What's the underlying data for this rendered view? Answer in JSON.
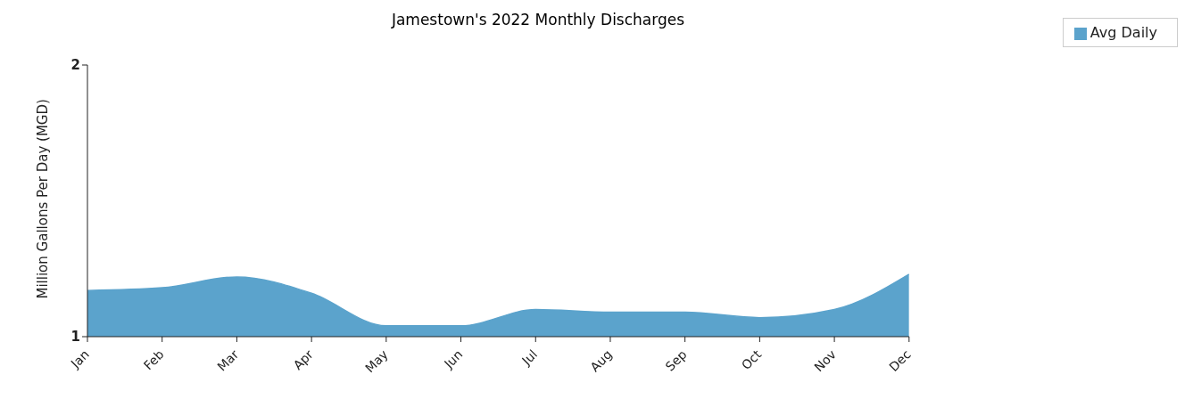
{
  "chart_data": {
    "type": "area",
    "title": "Jamestown's 2022 Monthly Discharges",
    "ylabel": "Million Gallons Per Day (MGD)",
    "categories": [
      "Jan",
      "Feb",
      "Mar",
      "Apr",
      "May",
      "Jun",
      "Jul",
      "Aug",
      "Sep",
      "Oct",
      "Nov",
      "Dec"
    ],
    "series": [
      {
        "name": "Avg Daily",
        "color": "#5ba3cc",
        "values": [
          1.17,
          1.18,
          1.22,
          1.16,
          1.04,
          1.04,
          1.1,
          1.09,
          1.09,
          1.07,
          1.1,
          1.23
        ]
      }
    ],
    "ylim": [
      1,
      2
    ],
    "yticks": [
      1,
      2
    ],
    "grid": false,
    "legend": "top right"
  }
}
